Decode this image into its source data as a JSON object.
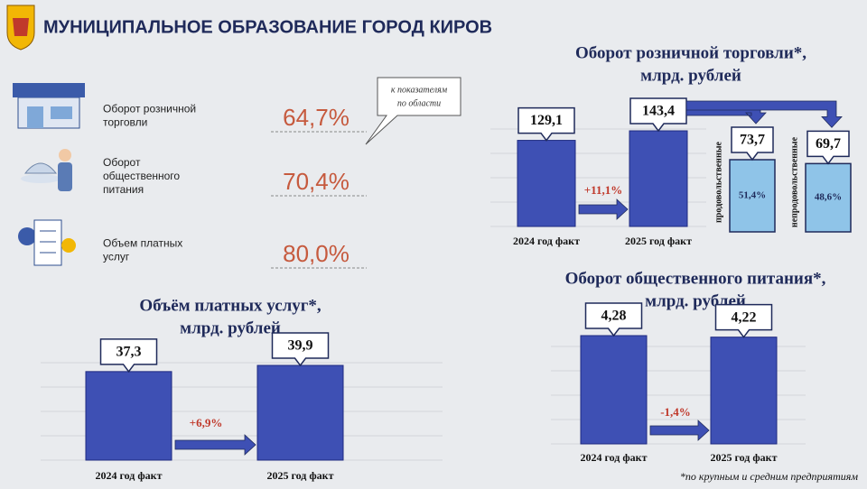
{
  "header": {
    "title": "МУНИЦИПАЛЬНОЕ ОБРАЗОВАНИЕ ГОРОД КИРОВ"
  },
  "indicators": {
    "note": [
      "к показателям",
      "по области"
    ],
    "items": [
      {
        "label": [
          "Оборот розничной",
          "торговли"
        ],
        "value": "64,7%"
      },
      {
        "label": [
          "Оборот",
          "общественного",
          "питания"
        ],
        "value": "70,4%"
      },
      {
        "label": [
          "Объем платных",
          "услуг"
        ],
        "value": "80,0%"
      }
    ]
  },
  "chart_data": [
    {
      "type": "bar",
      "title": "Оборот розничной торговли*,",
      "subtitle": "млрд. рублей",
      "categories": [
        "2024 год факт",
        "2025 год факт"
      ],
      "values": [
        129.1,
        143.4
      ],
      "value_labels": [
        "129,1",
        "143,4"
      ],
      "color": "#3e50b4",
      "change_label": "+11,1%",
      "breakdown": {
        "categories": [
          "продовольственные",
          "непродовольственные"
        ],
        "values": [
          73.7,
          69.7
        ],
        "value_labels": [
          "73,7",
          "69,7"
        ],
        "shares": [
          51.4,
          48.6
        ],
        "share_labels": [
          "51,4%",
          "48,6%"
        ],
        "color": "#8fc4e8"
      }
    },
    {
      "type": "bar",
      "title": "Объём платных услуг*,",
      "subtitle": "млрд. рублей",
      "categories": [
        "2024 год факт",
        "2025 год факт"
      ],
      "values": [
        37.3,
        39.9
      ],
      "value_labels": [
        "37,3",
        "39,9"
      ],
      "color": "#3e50b4",
      "change_label": "+6,9%"
    },
    {
      "type": "bar",
      "title": "Оборот общественного питания*,",
      "subtitle": "млрд. рублей",
      "categories": [
        "2024 год факт",
        "2025 год факт"
      ],
      "values": [
        4.28,
        4.22
      ],
      "value_labels": [
        "4,28",
        "4,22"
      ],
      "color": "#3e50b4",
      "change_label": "-1,4%"
    }
  ],
  "footnote": "*по крупным и средним предприятиям"
}
